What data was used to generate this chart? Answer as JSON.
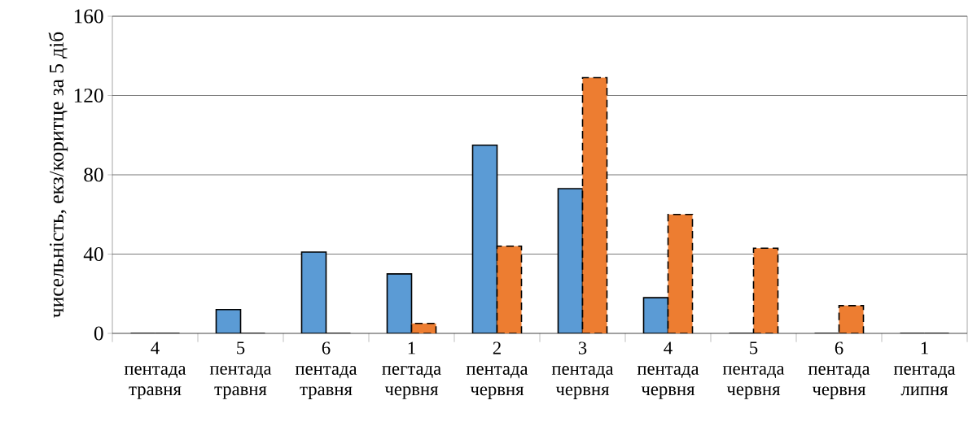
{
  "chart_data": {
    "type": "bar",
    "ylabel": "чисельність, екз/коритце за 5 діб",
    "categories": [
      "4 пентада травня",
      "5 пентада травня",
      "6 пентада травня",
      "1 пегтада червня",
      "2 пентада червня",
      "3 пентада червня",
      "4 пентада червня",
      "5 пентада червня",
      "6 пентада червня",
      "1 пентада липня"
    ],
    "series": [
      {
        "color": "#5b9bd5",
        "line_style": "solid",
        "values": [
          0,
          12,
          41,
          30,
          95,
          73,
          18,
          0,
          0,
          0
        ]
      },
      {
        "color": "#ed7d31",
        "line_style": "dashed",
        "values": [
          0,
          0,
          0,
          5,
          44,
          129,
          60,
          43,
          14,
          0
        ]
      }
    ],
    "ylim": [
      0,
      160
    ],
    "yticks": [
      0,
      40,
      80,
      120,
      160
    ],
    "grid": "y"
  }
}
